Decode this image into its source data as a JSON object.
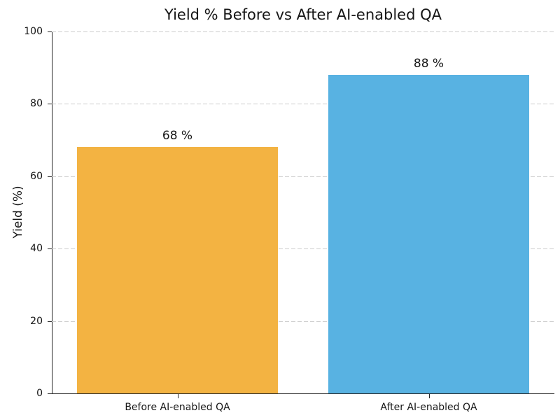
{
  "chart_data": {
    "type": "bar",
    "title": "Yield % Before vs After AI-enabled QA",
    "ylabel": "Yield (%)",
    "xlabel": "",
    "categories": [
      "Before AI-enabled QA",
      "After AI-enabled QA"
    ],
    "values": [
      68,
      88
    ],
    "value_labels": [
      "68 %",
      "88 %"
    ],
    "bar_colors": [
      "#f3b342",
      "#58b2e2"
    ],
    "ylim": [
      0,
      100
    ],
    "yticks": [
      0,
      20,
      40,
      60,
      80,
      100
    ],
    "bar_width_fraction": 0.8,
    "grid": "horizontal dashed",
    "grid_color": "#cccccc",
    "text_color": "#151515",
    "background_color": "#ffffff",
    "legend_position": "none"
  }
}
